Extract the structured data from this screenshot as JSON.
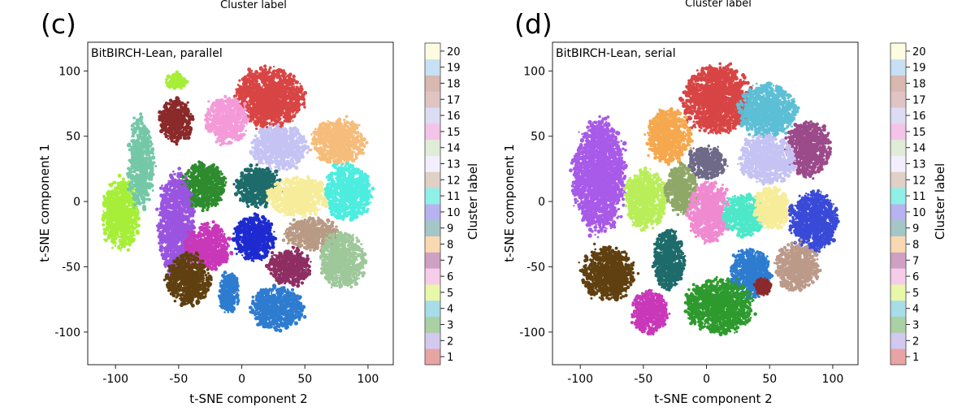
{
  "chart_data": [
    {
      "type": "scatter",
      "panel_label": "(c)",
      "annotation": "BitBIRCH-Lean, parallel",
      "top_caption": "Cluster label",
      "xlabel": "t-SNE component 2",
      "ylabel": "t-SNE component 1",
      "xlim": [
        -122,
        120
      ],
      "ylim": [
        -125,
        122
      ],
      "xticks": [
        -100,
        -50,
        0,
        50,
        100
      ],
      "yticks": [
        -100,
        -50,
        0,
        50,
        100
      ],
      "colorbar": {
        "label": "Cluster label",
        "ticks": [
          1,
          2,
          3,
          4,
          5,
          6,
          7,
          8,
          9,
          10,
          11,
          12,
          13,
          14,
          15,
          16,
          17,
          18,
          19,
          20
        ]
      },
      "clusters": [
        {
          "label": "red-top",
          "color": "#d84545",
          "x": 22,
          "y": 80,
          "rx": 26,
          "ry": 22
        },
        {
          "label": "orchid",
          "color": "#f49ad8",
          "x": -12,
          "y": 62,
          "rx": 16,
          "ry": 17
        },
        {
          "label": "maroon",
          "color": "#8b2a2a",
          "x": -52,
          "y": 62,
          "rx": 13,
          "ry": 16
        },
        {
          "label": "lavender",
          "color": "#c5c3f3",
          "x": 30,
          "y": 42,
          "rx": 21,
          "ry": 16
        },
        {
          "label": "peach",
          "color": "#f5bc7a",
          "x": 76,
          "y": 46,
          "rx": 20,
          "ry": 17
        },
        {
          "label": "green-mid",
          "color": "#2e8b2e",
          "x": -30,
          "y": 12,
          "rx": 17,
          "ry": 17
        },
        {
          "label": "teal-dark",
          "color": "#1e6b6b",
          "x": 13,
          "y": 12,
          "rx": 17,
          "ry": 15
        },
        {
          "label": "yellow",
          "color": "#f7ec9a",
          "x": 45,
          "y": 4,
          "rx": 24,
          "ry": 14
        },
        {
          "label": "aqua",
          "color": "#4dede0",
          "x": 84,
          "y": 7,
          "rx": 18,
          "ry": 20
        },
        {
          "label": "violet",
          "color": "#9a55e0",
          "x": -52,
          "y": -18,
          "rx": 14,
          "ry": 38
        },
        {
          "label": "lime",
          "color": "#a6ee38",
          "x": -96,
          "y": -10,
          "rx": 14,
          "ry": 26
        },
        {
          "label": "lime-teal",
          "color": "#74c8a8",
          "x": -80,
          "y": 30,
          "rx": 10,
          "ry": 32
        },
        {
          "label": "blue-dark",
          "color": "#1e2bd0",
          "x": 10,
          "y": -28,
          "rx": 16,
          "ry": 17
        },
        {
          "label": "magenta",
          "color": "#c838b8",
          "x": -27,
          "y": -35,
          "rx": 17,
          "ry": 17
        },
        {
          "label": "brown-tan",
          "color": "#b89a85",
          "x": 56,
          "y": -25,
          "rx": 21,
          "ry": 12
        },
        {
          "label": "sage",
          "color": "#9ec89a",
          "x": 80,
          "y": -45,
          "rx": 17,
          "ry": 21
        },
        {
          "label": "plum",
          "color": "#8e2e62",
          "x": 38,
          "y": -50,
          "rx": 16,
          "ry": 14
        },
        {
          "label": "brown-dark",
          "color": "#604010",
          "x": -42,
          "y": -60,
          "rx": 17,
          "ry": 19
        },
        {
          "label": "steel-blue",
          "color": "#2e7cd0",
          "x": 28,
          "y": -82,
          "rx": 20,
          "ry": 16
        },
        {
          "label": "blue-mid",
          "color": "#2e7cd0",
          "x": -10,
          "y": -70,
          "rx": 8,
          "ry": 16
        },
        {
          "label": "lime-small",
          "color": "#a6ee38",
          "x": -52,
          "y": 92,
          "rx": 8,
          "ry": 6
        }
      ]
    },
    {
      "type": "scatter",
      "panel_label": "(d)",
      "annotation": "BitBIRCH-Lean, serial",
      "top_caption": "Cluster label",
      "xlabel": "t-SNE component 2",
      "ylabel": "t-SNE component 1",
      "xlim": [
        -122,
        120
      ],
      "ylim": [
        -125,
        122
      ],
      "xticks": [
        -100,
        -50,
        0,
        50,
        100
      ],
      "yticks": [
        -100,
        -50,
        0,
        50,
        100
      ],
      "colorbar": {
        "label": "Cluster label",
        "ticks": [
          1,
          2,
          3,
          4,
          5,
          6,
          7,
          8,
          9,
          10,
          11,
          12,
          13,
          14,
          15,
          16,
          17,
          18,
          19,
          20
        ]
      },
      "clusters": [
        {
          "label": "red-top",
          "color": "#d84545",
          "x": 8,
          "y": 78,
          "rx": 26,
          "ry": 25
        },
        {
          "label": "cyan-light",
          "color": "#5dbfd5",
          "x": 48,
          "y": 70,
          "rx": 22,
          "ry": 20
        },
        {
          "label": "orange",
          "color": "#f5a84e",
          "x": -30,
          "y": 50,
          "rx": 17,
          "ry": 20
        },
        {
          "label": "plum",
          "color": "#9b4a8a",
          "x": 80,
          "y": 40,
          "rx": 17,
          "ry": 20
        },
        {
          "label": "slate",
          "color": "#6e6a88",
          "x": 0,
          "y": 30,
          "rx": 14,
          "ry": 12
        },
        {
          "label": "lavender",
          "color": "#c5c3f3",
          "x": 48,
          "y": 32,
          "rx": 22,
          "ry": 18
        },
        {
          "label": "violet",
          "color": "#a85ae8",
          "x": -85,
          "y": 20,
          "rx": 20,
          "ry": 42
        },
        {
          "label": "lime",
          "color": "#b9ee5a",
          "x": -48,
          "y": 2,
          "rx": 16,
          "ry": 22
        },
        {
          "label": "olive-green",
          "color": "#8fa868",
          "x": -20,
          "y": 10,
          "rx": 12,
          "ry": 18
        },
        {
          "label": "pink",
          "color": "#f08ad0",
          "x": 2,
          "y": -8,
          "rx": 16,
          "ry": 22
        },
        {
          "label": "mint",
          "color": "#4de8c8",
          "x": 30,
          "y": -10,
          "rx": 16,
          "ry": 16
        },
        {
          "label": "yellow",
          "color": "#f7ec9a",
          "x": 52,
          "y": -5,
          "rx": 14,
          "ry": 16
        },
        {
          "label": "blue-royal",
          "color": "#3a4ad8",
          "x": 85,
          "y": -15,
          "rx": 18,
          "ry": 22
        },
        {
          "label": "dusty-rose",
          "color": "#bc9a8a",
          "x": 72,
          "y": -50,
          "rx": 16,
          "ry": 18
        },
        {
          "label": "steel-blue",
          "color": "#2e7cd0",
          "x": 35,
          "y": -55,
          "rx": 16,
          "ry": 18
        },
        {
          "label": "green",
          "color": "#2e9a2e",
          "x": 10,
          "y": -80,
          "rx": 26,
          "ry": 20
        },
        {
          "label": "teal-dark",
          "color": "#1e6b6b",
          "x": -30,
          "y": -45,
          "rx": 12,
          "ry": 22
        },
        {
          "label": "brown-dark",
          "color": "#604010",
          "x": -78,
          "y": -55,
          "rx": 20,
          "ry": 20
        },
        {
          "label": "magenta",
          "color": "#c838b8",
          "x": -45,
          "y": -85,
          "rx": 14,
          "ry": 16
        },
        {
          "label": "maroon-small",
          "color": "#8b2a2a",
          "x": 45,
          "y": -65,
          "rx": 6,
          "ry": 6
        }
      ]
    }
  ]
}
